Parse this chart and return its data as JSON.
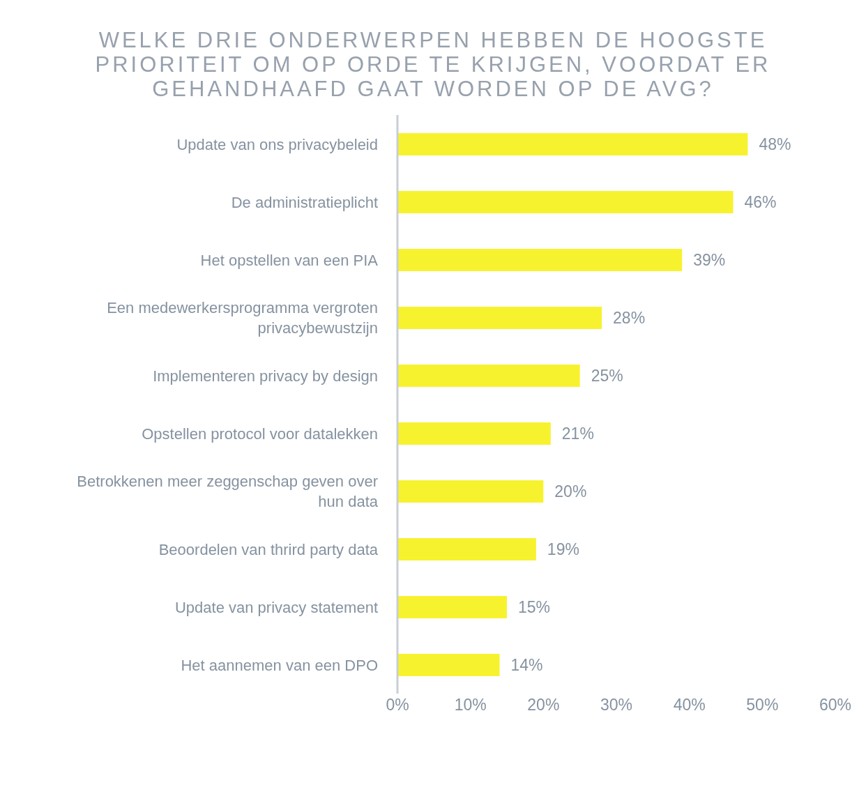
{
  "chart_data": {
    "type": "bar",
    "orientation": "horizontal",
    "title": "WELKE DRIE ONDERWERPEN HEBBEN DE HOOGSTE PRIORITEIT OM OP ORDE TE KRIJGEN, VOORDAT ER GEHANDHAAFD GAAT WORDEN OP DE AVG?",
    "categories": [
      "Update van ons privacybeleid",
      "De administratieplicht",
      "Het opstellen van een PIA",
      "Een medewerkersprogramma vergroten privacybewustzijn",
      "Implementeren privacy by design",
      "Opstellen protocol voor datalekken",
      "Betrokkenen meer zeggenschap geven over hun data",
      "Beoordelen van thrird party data",
      "Update van privacy statement",
      "Het aannemen van een DPO"
    ],
    "values": [
      48,
      46,
      39,
      28,
      25,
      21,
      20,
      19,
      15,
      14
    ],
    "value_labels": [
      "48%",
      "46%",
      "39%",
      "28%",
      "25%",
      "21%",
      "20%",
      "19%",
      "15%",
      "14%"
    ],
    "color": "#f7f22e",
    "xlim": [
      0,
      60
    ],
    "xticks": [
      {
        "value": 0,
        "label": "0%"
      },
      {
        "value": 10,
        "label": "10%"
      },
      {
        "value": 20,
        "label": "20%"
      },
      {
        "value": 30,
        "label": "30%"
      },
      {
        "value": 40,
        "label": "40%"
      },
      {
        "value": 50,
        "label": "50%"
      },
      {
        "value": 60,
        "label": "60%"
      }
    ],
    "grid": false,
    "legend": false
  }
}
